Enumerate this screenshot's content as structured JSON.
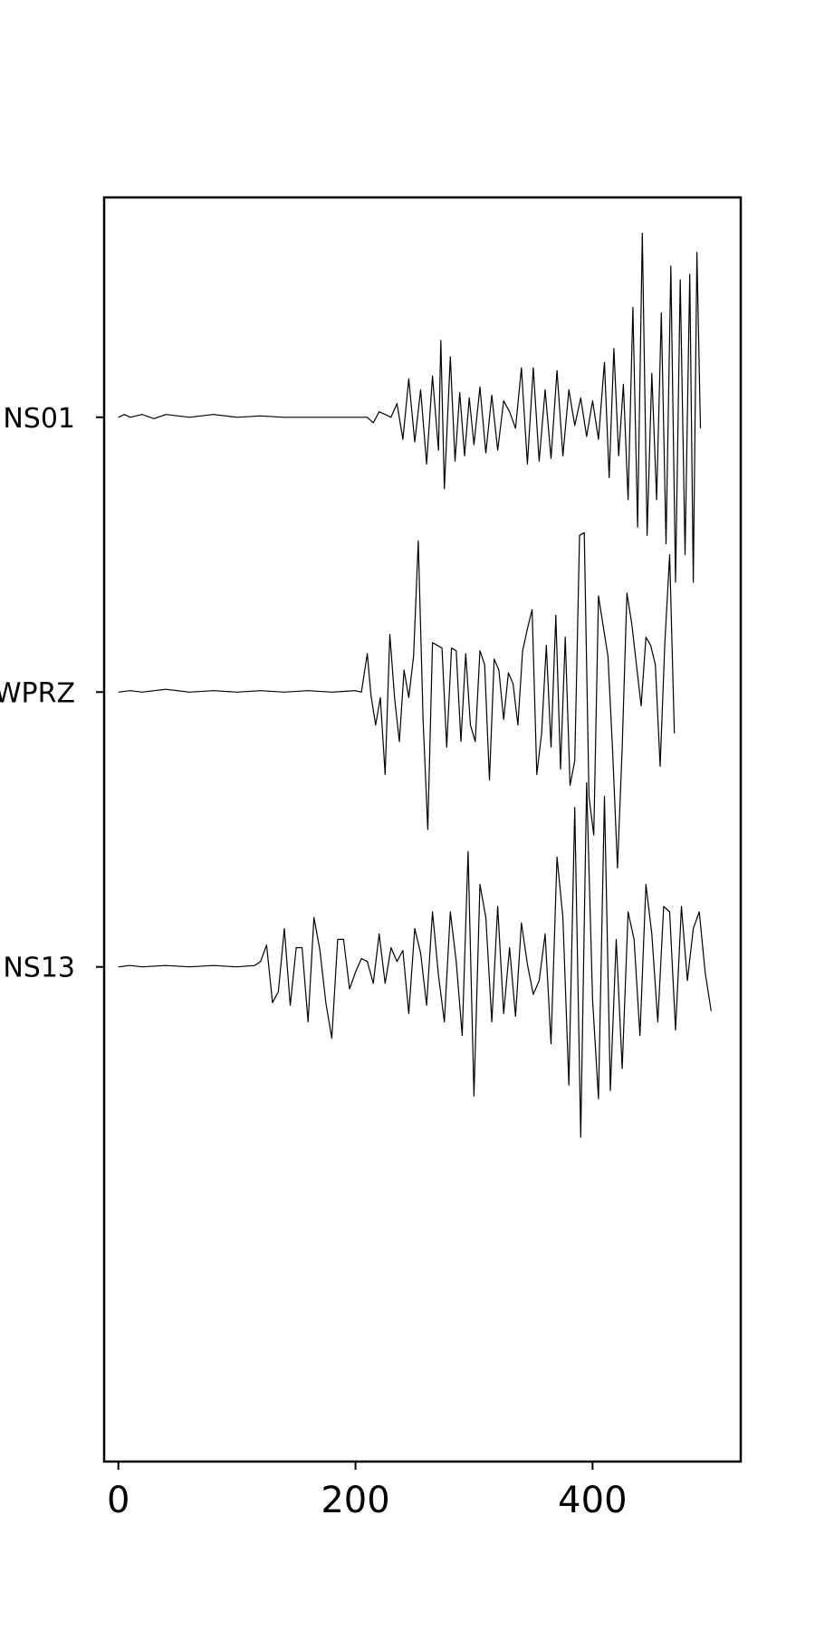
{
  "chart_data": {
    "type": "line",
    "title": "",
    "xlabel": "",
    "ylabel": "",
    "xlim": [
      -12,
      525
    ],
    "ylim": [
      -0.8,
      3.8
    ],
    "grid": false,
    "legend": "none",
    "x_ticks": [
      {
        "value": 0,
        "label": "0"
      },
      {
        "value": 200,
        "label": "200"
      },
      {
        "value": 400,
        "label": "400"
      }
    ],
    "y_ticks": [
      {
        "value": 3,
        "label": "NS01"
      },
      {
        "value": 2,
        "label": "WPRZ"
      },
      {
        "value": 1,
        "label": "NS13"
      }
    ],
    "series_note_units": "each trace: x = sample index (0–500), y = normalized amplitude around its station offset",
    "series": [
      {
        "label_ref": "NS01",
        "offset": 3,
        "color": "#000000",
        "points": [
          [
            0,
            0
          ],
          [
            5,
            0.01
          ],
          [
            10,
            0
          ],
          [
            20,
            0.01
          ],
          [
            30,
            -0.005
          ],
          [
            40,
            0.01
          ],
          [
            60,
            0
          ],
          [
            80,
            0.01
          ],
          [
            100,
            0
          ],
          [
            120,
            0.005
          ],
          [
            140,
            0
          ],
          [
            160,
            0
          ],
          [
            180,
            0
          ],
          [
            200,
            0
          ],
          [
            210,
            0
          ],
          [
            215,
            -0.02
          ],
          [
            220,
            0.02
          ],
          [
            225,
            0.01
          ],
          [
            230,
            0
          ],
          [
            235,
            0.05
          ],
          [
            240,
            -0.08
          ],
          [
            245,
            0.14
          ],
          [
            250,
            -0.09
          ],
          [
            255,
            0.1
          ],
          [
            260,
            -0.17
          ],
          [
            265,
            0.15
          ],
          [
            270,
            -0.12
          ],
          [
            272,
            0.28
          ],
          [
            275,
            -0.26
          ],
          [
            280,
            0.22
          ],
          [
            284,
            -0.16
          ],
          [
            288,
            0.09
          ],
          [
            292,
            -0.14
          ],
          [
            296,
            0.07
          ],
          [
            300,
            -0.1
          ],
          [
            305,
            0.11
          ],
          [
            310,
            -0.13
          ],
          [
            315,
            0.08
          ],
          [
            320,
            -0.12
          ],
          [
            325,
            0.06
          ],
          [
            330,
            0.02
          ],
          [
            335,
            -0.04
          ],
          [
            340,
            0.18
          ],
          [
            345,
            -0.17
          ],
          [
            350,
            0.18
          ],
          [
            355,
            -0.16
          ],
          [
            360,
            0.1
          ],
          [
            365,
            -0.15
          ],
          [
            370,
            0.17
          ],
          [
            375,
            -0.14
          ],
          [
            380,
            0.1
          ],
          [
            385,
            -0.03
          ],
          [
            390,
            0.07
          ],
          [
            395,
            -0.07
          ],
          [
            400,
            0.06
          ],
          [
            405,
            -0.08
          ],
          [
            410,
            0.2
          ],
          [
            414,
            -0.22
          ],
          [
            418,
            0.25
          ],
          [
            422,
            -0.14
          ],
          [
            426,
            0.12
          ],
          [
            430,
            -0.3
          ],
          [
            434,
            0.4
          ],
          [
            438,
            -0.4
          ],
          [
            442,
            0.67
          ],
          [
            446,
            -0.43
          ],
          [
            450,
            0.16
          ],
          [
            454,
            -0.3
          ],
          [
            458,
            0.38
          ],
          [
            462,
            -0.46
          ],
          [
            466,
            0.55
          ],
          [
            470,
            -0.6
          ],
          [
            474,
            0.5
          ],
          [
            478,
            -0.5
          ],
          [
            482,
            0.52
          ],
          [
            485,
            -0.6
          ],
          [
            488,
            0.6
          ],
          [
            491,
            -0.04
          ]
        ]
      },
      {
        "label_ref": "WPRZ",
        "offset": 2,
        "color": "#000000",
        "points": [
          [
            0,
            0
          ],
          [
            10,
            0.005
          ],
          [
            20,
            0
          ],
          [
            40,
            0.01
          ],
          [
            60,
            0
          ],
          [
            80,
            0.005
          ],
          [
            100,
            0
          ],
          [
            120,
            0.005
          ],
          [
            140,
            0
          ],
          [
            160,
            0.005
          ],
          [
            180,
            0
          ],
          [
            200,
            0.005
          ],
          [
            205,
            0
          ],
          [
            210,
            0.14
          ],
          [
            213,
            -0.01
          ],
          [
            217,
            -0.12
          ],
          [
            221,
            -0.02
          ],
          [
            225,
            -0.3
          ],
          [
            229,
            0.21
          ],
          [
            233,
            -0.02
          ],
          [
            237,
            -0.18
          ],
          [
            241,
            0.08
          ],
          [
            245,
            -0.02
          ],
          [
            249,
            0.13
          ],
          [
            253,
            0.55
          ],
          [
            257,
            -0.1
          ],
          [
            261,
            -0.5
          ],
          [
            265,
            0.18
          ],
          [
            269,
            0.17
          ],
          [
            273,
            0.16
          ],
          [
            277,
            -0.2
          ],
          [
            281,
            0.16
          ],
          [
            285,
            0.15
          ],
          [
            289,
            -0.18
          ],
          [
            293,
            0.14
          ],
          [
            297,
            -0.12
          ],
          [
            301,
            -0.18
          ],
          [
            305,
            0.15
          ],
          [
            309,
            0.1
          ],
          [
            313,
            -0.32
          ],
          [
            317,
            0.12
          ],
          [
            321,
            0.08
          ],
          [
            325,
            -0.1
          ],
          [
            329,
            0.07
          ],
          [
            333,
            0.03
          ],
          [
            337,
            -0.12
          ],
          [
            341,
            0.15
          ],
          [
            345,
            0.23
          ],
          [
            349,
            0.3
          ],
          [
            353,
            -0.3
          ],
          [
            357,
            -0.15
          ],
          [
            361,
            0.17
          ],
          [
            365,
            -0.2
          ],
          [
            369,
            0.28
          ],
          [
            373,
            -0.28
          ],
          [
            377,
            0.2
          ],
          [
            381,
            -0.34
          ],
          [
            385,
            -0.25
          ],
          [
            389,
            0.57
          ],
          [
            393,
            0.58
          ],
          [
            397,
            -0.38
          ],
          [
            401,
            -0.52
          ],
          [
            405,
            0.35
          ],
          [
            409,
            0.24
          ],
          [
            413,
            0.13
          ],
          [
            417,
            -0.22
          ],
          [
            421,
            -0.64
          ],
          [
            425,
            -0.2
          ],
          [
            429,
            0.36
          ],
          [
            433,
            0.25
          ],
          [
            437,
            0.1
          ],
          [
            441,
            -0.05
          ],
          [
            445,
            0.2
          ],
          [
            449,
            0.17
          ],
          [
            453,
            0.1
          ],
          [
            457,
            -0.27
          ],
          [
            461,
            0.18
          ],
          [
            465,
            0.5
          ],
          [
            469,
            -0.15
          ]
        ]
      },
      {
        "label_ref": "NS13",
        "offset": 1,
        "color": "#000000",
        "points": [
          [
            0,
            0
          ],
          [
            10,
            0.005
          ],
          [
            20,
            0
          ],
          [
            40,
            0.005
          ],
          [
            60,
            0
          ],
          [
            80,
            0.005
          ],
          [
            100,
            0
          ],
          [
            115,
            0.005
          ],
          [
            120,
            0.02
          ],
          [
            125,
            0.08
          ],
          [
            130,
            -0.13
          ],
          [
            135,
            -0.09
          ],
          [
            140,
            0.14
          ],
          [
            145,
            -0.14
          ],
          [
            150,
            0.07
          ],
          [
            155,
            0.07
          ],
          [
            160,
            -0.2
          ],
          [
            165,
            0.18
          ],
          [
            170,
            0.06
          ],
          [
            175,
            -0.13
          ],
          [
            180,
            -0.26
          ],
          [
            185,
            0.1
          ],
          [
            190,
            0.1
          ],
          [
            195,
            -0.08
          ],
          [
            200,
            -0.02
          ],
          [
            205,
            0.03
          ],
          [
            210,
            0.02
          ],
          [
            215,
            -0.06
          ],
          [
            220,
            0.12
          ],
          [
            225,
            -0.06
          ],
          [
            230,
            0.07
          ],
          [
            235,
            0.02
          ],
          [
            240,
            0.06
          ],
          [
            245,
            -0.17
          ],
          [
            250,
            0.14
          ],
          [
            255,
            0.05
          ],
          [
            260,
            -0.14
          ],
          [
            265,
            0.2
          ],
          [
            270,
            -0.03
          ],
          [
            275,
            -0.2
          ],
          [
            280,
            0.2
          ],
          [
            285,
            0.02
          ],
          [
            290,
            -0.25
          ],
          [
            295,
            0.42
          ],
          [
            300,
            -0.47
          ],
          [
            305,
            0.3
          ],
          [
            310,
            0.18
          ],
          [
            315,
            -0.2
          ],
          [
            320,
            0.22
          ],
          [
            325,
            -0.17
          ],
          [
            330,
            0.07
          ],
          [
            335,
            -0.18
          ],
          [
            340,
            0.16
          ],
          [
            345,
            0.01
          ],
          [
            350,
            -0.1
          ],
          [
            355,
            -0.05
          ],
          [
            360,
            0.12
          ],
          [
            365,
            -0.28
          ],
          [
            370,
            0.4
          ],
          [
            375,
            0.18
          ],
          [
            380,
            -0.43
          ],
          [
            385,
            0.58
          ],
          [
            390,
            -0.62
          ],
          [
            395,
            0.67
          ],
          [
            400,
            -0.12
          ],
          [
            405,
            -0.48
          ],
          [
            410,
            0.62
          ],
          [
            415,
            -0.45
          ],
          [
            420,
            0.1
          ],
          [
            425,
            -0.37
          ],
          [
            430,
            0.2
          ],
          [
            435,
            0.1
          ],
          [
            440,
            -0.25
          ],
          [
            445,
            0.3
          ],
          [
            450,
            0.12
          ],
          [
            455,
            -0.2
          ],
          [
            460,
            0.22
          ],
          [
            465,
            0.2
          ],
          [
            470,
            -0.23
          ],
          [
            475,
            0.22
          ],
          [
            480,
            -0.05
          ],
          [
            485,
            0.14
          ],
          [
            490,
            0.2
          ],
          [
            495,
            -0.02
          ],
          [
            500,
            -0.16
          ]
        ]
      }
    ]
  }
}
